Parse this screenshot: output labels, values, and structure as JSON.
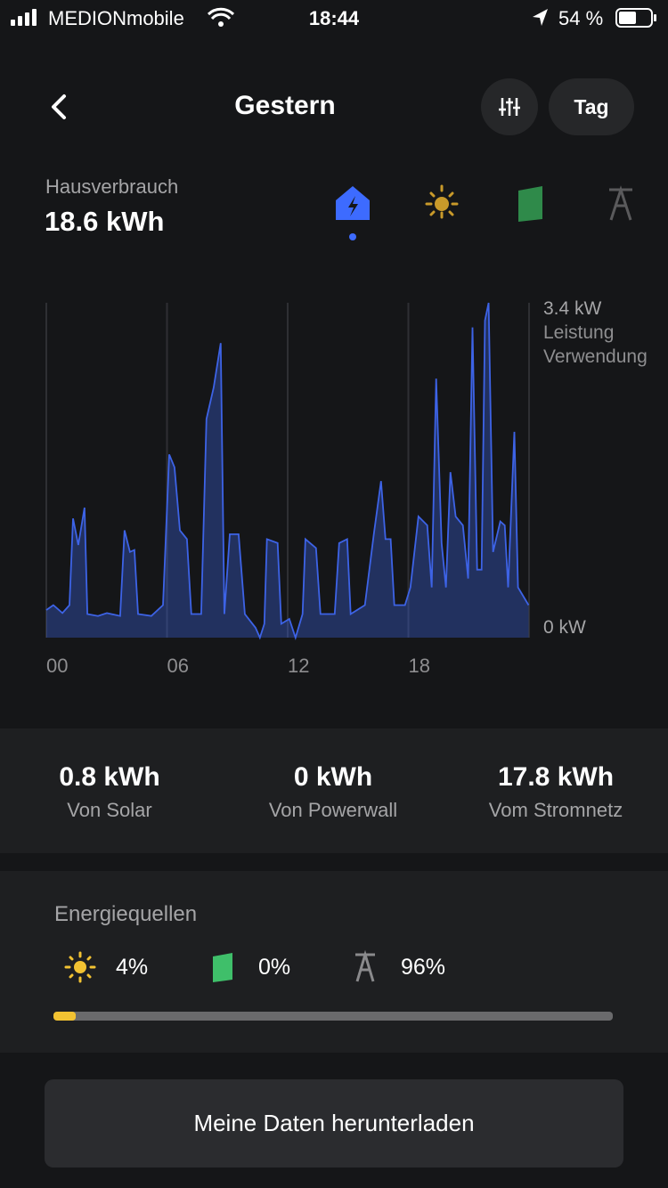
{
  "status_bar": {
    "carrier": "MEDIONmobile",
    "time": "18:44",
    "battery": "54 %"
  },
  "header": {
    "title": "Gestern",
    "period_button": "Tag"
  },
  "summary": {
    "label": "Hausverbrauch",
    "value": "18.6 kWh"
  },
  "chart_data": {
    "type": "area",
    "color": "#3d63e6",
    "axis_labels": [
      "Leistung",
      "Verwendung"
    ],
    "x": [
      0,
      0.35,
      0.8,
      1.15,
      1.33,
      1.59,
      1.9,
      2.04,
      2.57,
      3.01,
      3.67,
      3.89,
      4.16,
      4.38,
      4.56,
      5.22,
      5.8,
      6.11,
      6.37,
      6.64,
      6.99,
      7.21,
      7.7,
      7.96,
      8.32,
      8.67,
      8.85,
      9.12,
      9.56,
      9.87,
      10.4,
      10.62,
      10.84,
      10.97,
      11.5,
      11.68,
      12.08,
      12.39,
      12.74,
      12.88,
      13.41,
      13.63,
      14.34,
      14.56,
      14.96,
      15.13,
      15.84,
      16.28,
      16.64,
      16.86,
      17.12,
      17.3,
      17.83,
      18.1,
      18.5,
      18.94,
      19.16,
      19.38,
      19.65,
      19.87,
      20.09,
      20.35,
      20.71,
      20.97,
      21.19,
      21.42,
      21.64,
      21.81,
      21.99,
      22.21,
      22.57,
      22.79,
      22.96,
      23.27,
      23.45,
      23.98
    ],
    "values": [
      0.28,
      0.33,
      0.25,
      0.33,
      1.21,
      0.94,
      1.32,
      0.24,
      0.22,
      0.25,
      0.22,
      1.09,
      0.87,
      0.89,
      0.24,
      0.22,
      0.33,
      1.86,
      1.73,
      1.09,
      1.0,
      0.24,
      0.24,
      2.22,
      2.54,
      2.99,
      0.24,
      1.05,
      1.05,
      0.24,
      0.1,
      0,
      0.14,
      1.0,
      0.96,
      0.14,
      0.19,
      0,
      0.24,
      1.0,
      0.91,
      0.24,
      0.24,
      0.96,
      1.0,
      0.24,
      0.33,
      1.05,
      1.59,
      1.0,
      1.0,
      0.33,
      0.33,
      0.51,
      1.23,
      1.14,
      0.51,
      2.63,
      0.96,
      0.51,
      1.68,
      1.23,
      1.14,
      0.6,
      3.15,
      0.69,
      0.69,
      3.22,
      3.4,
      0.87,
      1.18,
      1.14,
      0.51,
      2.09,
      0.51,
      0.33
    ],
    "xlim": [
      0,
      24
    ],
    "ylim": [
      0,
      3.4
    ],
    "xticks": [
      {
        "value": 0,
        "label": "00"
      },
      {
        "value": 6,
        "label": "06"
      },
      {
        "value": 12,
        "label": "12"
      },
      {
        "value": 18,
        "label": "18"
      }
    ],
    "yticks": [
      {
        "value": 0,
        "label": "0 kW"
      },
      {
        "value": 3.4,
        "label": "3.4 kW"
      }
    ],
    "grid": true
  },
  "sources": [
    {
      "value": "0.8 kWh",
      "label": "Von Solar"
    },
    {
      "value": "0 kWh",
      "label": "Von Powerwall"
    },
    {
      "value": "17.8 kWh",
      "label": "Vom Stromnetz"
    }
  ],
  "energy_sources": {
    "title": "Energiequellen",
    "shares": [
      {
        "value": 4,
        "label": "4%",
        "color": "#f2c232"
      },
      {
        "value": 0,
        "label": "0%",
        "color": "#3fbf6a"
      },
      {
        "value": 96,
        "label": "96%",
        "color": "#6a6a6c"
      }
    ]
  },
  "download_button": "Meine Daten herunterladen"
}
